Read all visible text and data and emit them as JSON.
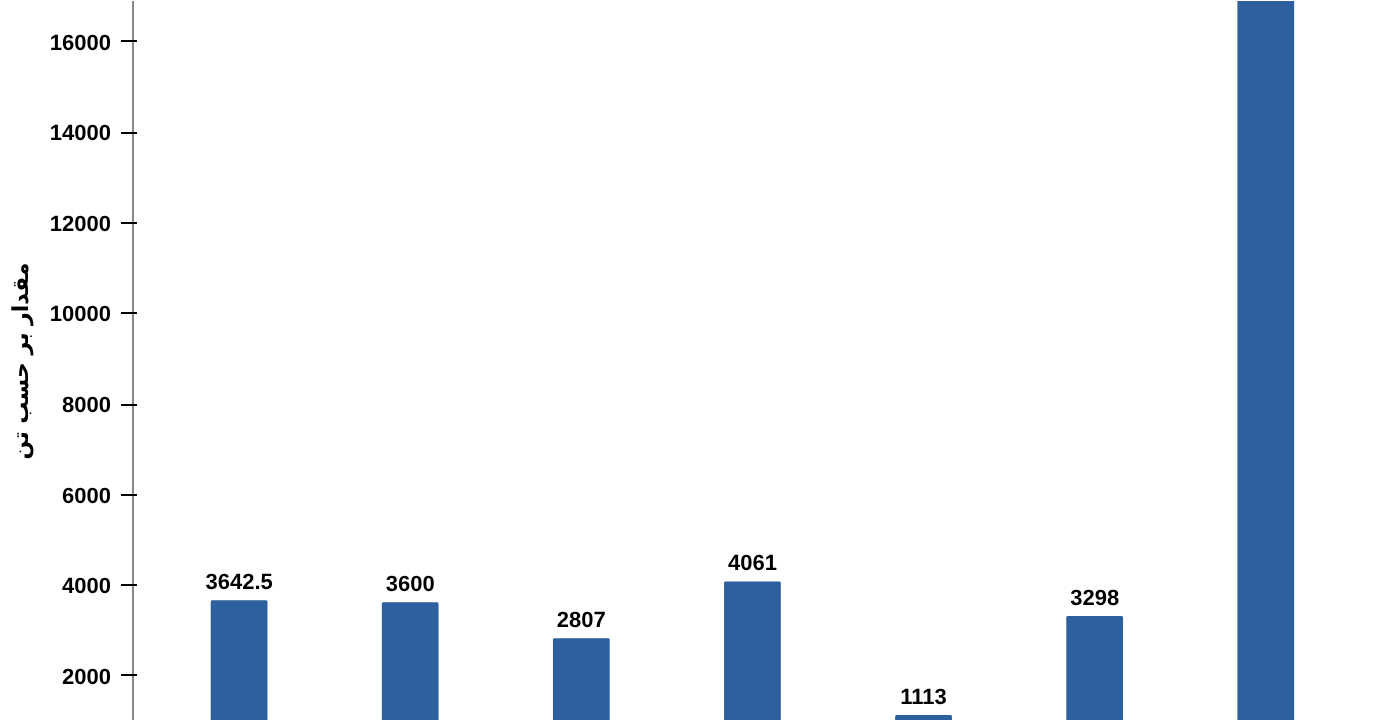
{
  "chart_data": {
    "type": "bar",
    "ylabel": "مقدار بر حسب تن",
    "categories": [
      null,
      null,
      null,
      null,
      null,
      null,
      null
    ],
    "values": [
      3642.5,
      3600,
      2807,
      4061,
      1113,
      3298,
      16900
    ],
    "value_labels": [
      "3642.5",
      "3600",
      "2807",
      "4061",
      "1113",
      "3298",
      null
    ],
    "color": "#2e5f9e",
    "ylim": [
      1000,
      16900
    ],
    "yticks": [
      2000,
      4000,
      6000,
      8000,
      10000,
      12000,
      14000,
      16000
    ],
    "grid": false
  }
}
